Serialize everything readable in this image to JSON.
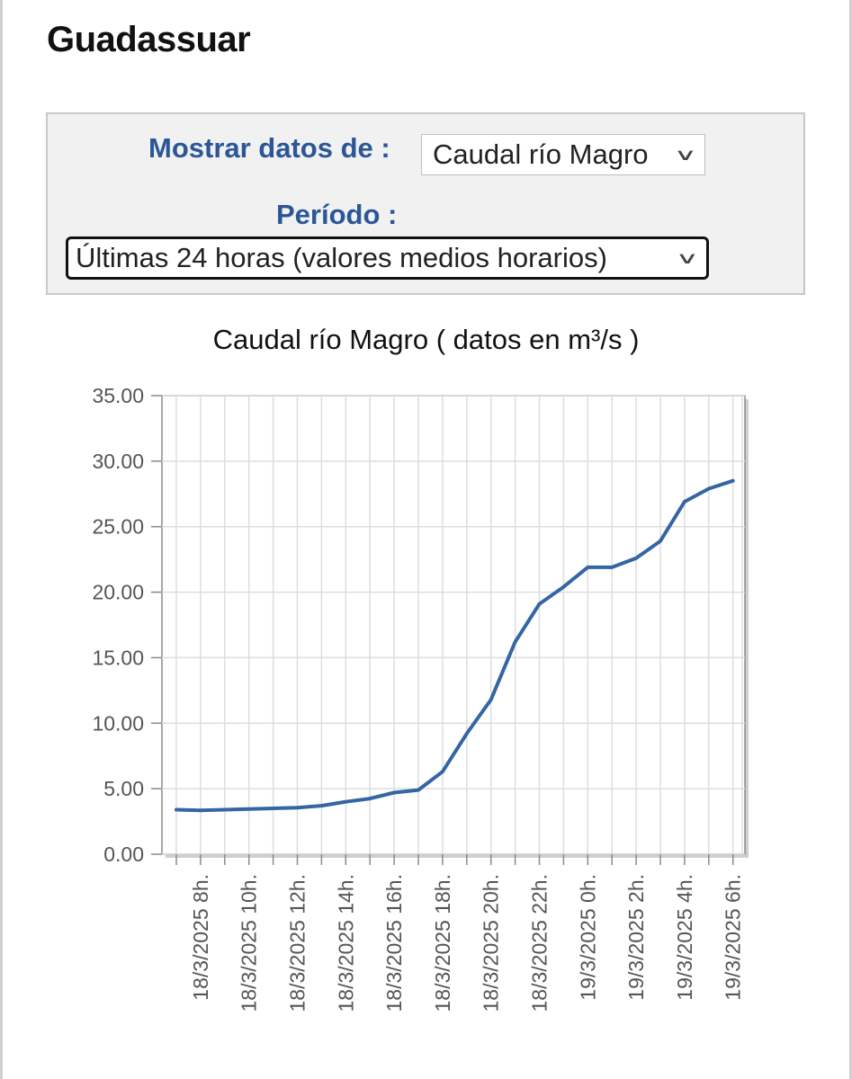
{
  "page": {
    "title": "Guadassuar"
  },
  "controls": {
    "show_label": "Mostrar datos de :",
    "show_value": "Caudal río Magro",
    "period_label": "Período :",
    "period_value": "Últimas 24 horas (valores medios horarios)"
  },
  "colors": {
    "accent": "#2b5797",
    "series": "#3465a4",
    "grid": "#dddddd",
    "panel_bg": "#f1f1f1"
  },
  "chart_data": {
    "type": "line",
    "title": "Caudal río Magro ( datos en m³/s )",
    "xlabel": "",
    "ylabel": "",
    "ylim": [
      0,
      35
    ],
    "yticks": [
      "0.00",
      "5.00",
      "10.00",
      "15.00",
      "20.00",
      "25.00",
      "30.00",
      "35.00"
    ],
    "grid": true,
    "x": [
      "18/3/2025 7h.",
      "18/3/2025 8h.",
      "18/3/2025 9h.",
      "18/3/2025 10h.",
      "18/3/2025 11h.",
      "18/3/2025 12h.",
      "18/3/2025 13h.",
      "18/3/2025 14h.",
      "18/3/2025 15h.",
      "18/3/2025 16h.",
      "18/3/2025 17h.",
      "18/3/2025 18h.",
      "18/3/2025 19h.",
      "18/3/2025 20h.",
      "18/3/2025 21h.",
      "18/3/2025 22h.",
      "18/3/2025 23h.",
      "19/3/2025 0h.",
      "19/3/2025 1h.",
      "19/3/2025 2h.",
      "19/3/2025 3h.",
      "19/3/2025 4h.",
      "19/3/2025 5h.",
      "19/3/2025 6h."
    ],
    "xtick_labels": [
      "18/3/2025 8h.",
      "18/3/2025 10h.",
      "18/3/2025 12h.",
      "18/3/2025 14h.",
      "18/3/2025 16h.",
      "18/3/2025 18h.",
      "18/3/2025 20h.",
      "18/3/2025 22h.",
      "19/3/2025 0h.",
      "19/3/2025 2h.",
      "19/3/2025 4h.",
      "19/3/2025 6h."
    ],
    "series": [
      {
        "values": [
          3.4,
          3.35,
          3.4,
          3.45,
          3.5,
          3.55,
          3.7,
          4.0,
          4.25,
          4.7,
          4.9,
          6.3,
          9.2,
          11.8,
          16.2,
          19.1,
          20.4,
          21.9,
          21.9,
          22.6,
          23.9,
          26.9,
          27.9,
          28.5
        ]
      }
    ]
  }
}
